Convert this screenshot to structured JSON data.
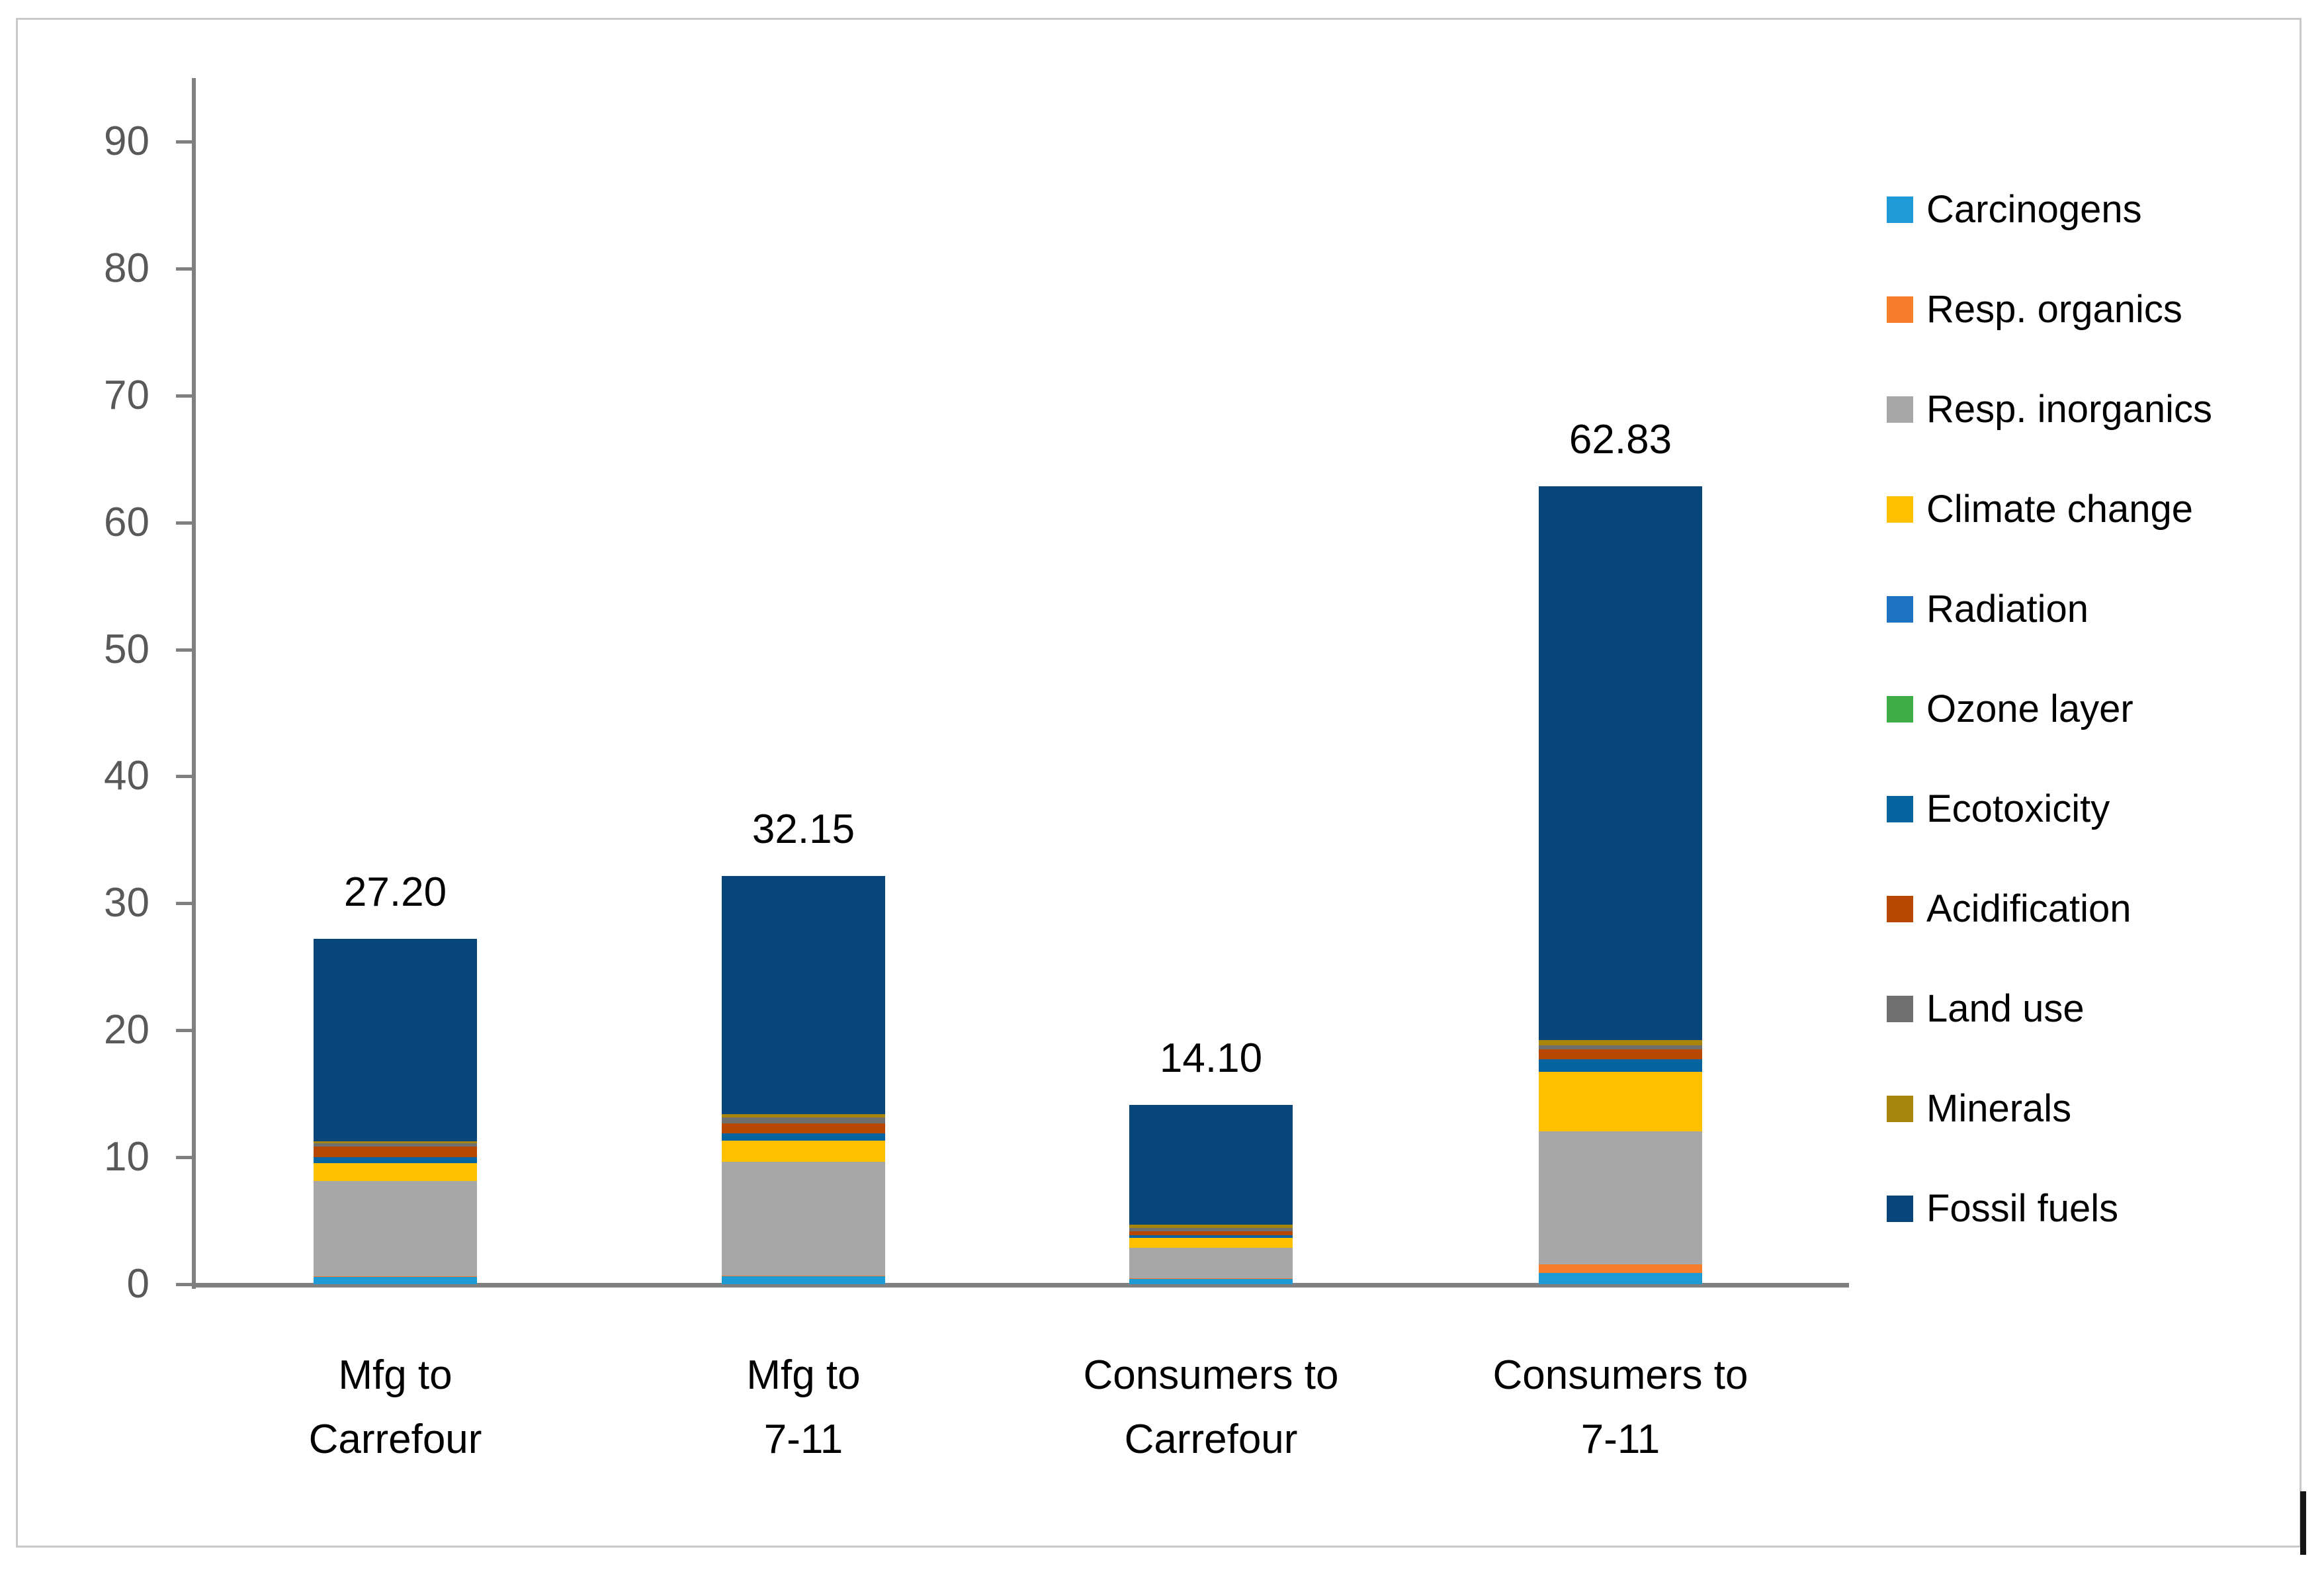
{
  "chart_data": {
    "type": "bar",
    "stacked": true,
    "title": "",
    "xlabel": "",
    "ylabel": "",
    "ylim": [
      0,
      90
    ],
    "ytick_step": 10,
    "grid": false,
    "legend_position": "right",
    "categories": [
      "Mfg to\nCarrefour",
      "Mfg to\n7-11",
      "Consumers to\nCarrefour",
      "Consumers to\n7-11"
    ],
    "totals": [
      "27.20",
      "32.15",
      "14.10",
      "62.83"
    ],
    "series": [
      {
        "name": "Carcinogens",
        "color": "#1E9BD7",
        "values": [
          0.55,
          0.6,
          0.4,
          0.9
        ]
      },
      {
        "name": "Resp. organics",
        "color": "#F87E2B",
        "values": [
          0.05,
          0.1,
          0.05,
          0.65
        ]
      },
      {
        "name": "Resp. inorganics",
        "color": "#A7A7A7",
        "values": [
          7.55,
          8.95,
          2.4,
          10.5
        ]
      },
      {
        "name": "Climate change",
        "color": "#FFC000",
        "values": [
          1.4,
          1.65,
          0.8,
          4.7
        ]
      },
      {
        "name": "Radiation",
        "color": "#1D72C2",
        "values": [
          0,
          0,
          0,
          0
        ]
      },
      {
        "name": "Ozone layer",
        "color": "#3FAD46",
        "values": [
          0,
          0,
          0,
          0
        ]
      },
      {
        "name": "Ecotoxicity",
        "color": "#0563A0",
        "values": [
          0.45,
          0.6,
          0.2,
          0.95
        ]
      },
      {
        "name": "Acidification",
        "color": "#B84700",
        "values": [
          0.85,
          0.75,
          0.3,
          0.8
        ]
      },
      {
        "name": "Land use",
        "color": "#6F6F6F",
        "values": [
          0.25,
          0.5,
          0.3,
          0.3
        ]
      },
      {
        "name": "Minerals",
        "color": "#A8860B",
        "values": [
          0.15,
          0.25,
          0.25,
          0.45
        ]
      },
      {
        "name": "Fossil fuels",
        "color": "#07457A",
        "values": [
          15.95,
          18.75,
          9.4,
          43.58
        ]
      }
    ],
    "colors": {
      "axis_line": "#808080",
      "tick_label": "#595959",
      "data_label": "#000000",
      "frame_border": "#C9C9C9"
    }
  }
}
